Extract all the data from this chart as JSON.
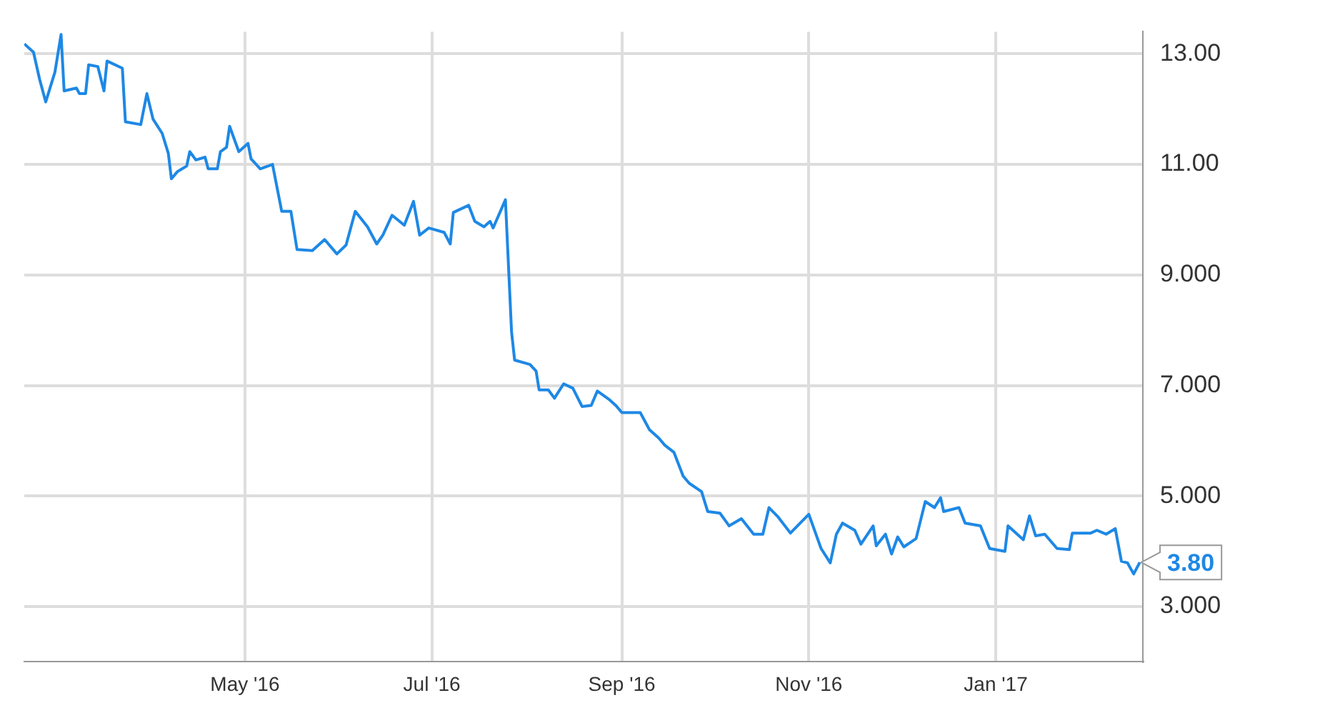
{
  "chart_data": {
    "type": "line",
    "x": [
      "2016-02-19",
      "2016-02-22",
      "2016-02-24",
      "2016-02-26",
      "2016-02-29",
      "2016-03-02",
      "2016-03-03",
      "2016-03-07",
      "2016-03-08",
      "2016-03-10",
      "2016-03-11",
      "2016-03-14",
      "2016-03-16",
      "2016-03-17",
      "2016-03-22",
      "2016-03-23",
      "2016-03-28",
      "2016-03-30",
      "2016-04-01",
      "2016-04-04",
      "2016-04-06",
      "2016-04-07",
      "2016-04-09",
      "2016-04-12",
      "2016-04-13",
      "2016-04-15",
      "2016-04-18",
      "2016-04-19",
      "2016-04-22",
      "2016-04-23",
      "2016-04-25",
      "2016-04-26",
      "2016-04-29",
      "2016-05-02",
      "2016-05-03",
      "2016-05-06",
      "2016-05-10",
      "2016-05-13",
      "2016-05-16",
      "2016-05-18",
      "2016-05-23",
      "2016-05-27",
      "2016-05-31",
      "2016-06-03",
      "2016-06-06",
      "2016-06-10",
      "2016-06-13",
      "2016-06-15",
      "2016-06-18",
      "2016-06-22",
      "2016-06-25",
      "2016-06-27",
      "2016-06-30",
      "2016-07-05",
      "2016-07-07",
      "2016-07-08",
      "2016-07-13",
      "2016-07-15",
      "2016-07-18",
      "2016-07-20",
      "2016-07-21",
      "2016-07-25",
      "2016-07-27",
      "2016-07-28",
      "2016-08-02",
      "2016-08-04",
      "2016-08-05",
      "2016-08-08",
      "2016-08-10",
      "2016-08-13",
      "2016-08-16",
      "2016-08-19",
      "2016-08-22",
      "2016-08-24",
      "2016-08-28",
      "2016-08-30",
      "2016-09-01",
      "2016-09-07",
      "2016-09-10",
      "2016-09-13",
      "2016-09-15",
      "2016-09-18",
      "2016-09-21",
      "2016-09-23",
      "2016-09-27",
      "2016-09-29",
      "2016-10-03",
      "2016-10-06",
      "2016-10-10",
      "2016-10-14",
      "2016-10-17",
      "2016-10-19",
      "2016-10-22",
      "2016-10-26",
      "2016-11-01",
      "2016-11-05",
      "2016-11-08",
      "2016-11-10",
      "2016-11-12",
      "2016-11-16",
      "2016-11-18",
      "2016-11-22",
      "2016-11-23",
      "2016-11-26",
      "2016-11-28",
      "2016-11-30",
      "2016-12-02",
      "2016-12-06",
      "2016-12-09",
      "2016-12-12",
      "2016-12-14",
      "2016-12-15",
      "2016-12-20",
      "2016-12-22",
      "2016-12-27",
      "2016-12-30",
      "2017-01-04",
      "2017-01-05",
      "2017-01-10",
      "2017-01-12",
      "2017-01-14",
      "2017-01-17",
      "2017-01-21",
      "2017-01-25",
      "2017-01-26",
      "2017-02-01",
      "2017-02-03",
      "2017-02-06",
      "2017-02-09",
      "2017-02-11",
      "2017-02-13",
      "2017-02-15",
      "2017-02-17"
    ],
    "series": [
      {
        "color": "#1e88e5",
        "values": [
          13.18,
          13.03,
          12.54,
          12.13,
          12.67,
          13.35,
          12.33,
          12.38,
          12.28,
          12.28,
          12.8,
          12.77,
          12.33,
          12.87,
          12.74,
          11.77,
          11.72,
          12.28,
          11.82,
          11.56,
          11.2,
          10.74,
          10.87,
          10.97,
          11.23,
          11.08,
          11.13,
          10.92,
          10.92,
          11.23,
          11.31,
          11.69,
          11.23,
          11.38,
          11.1,
          10.92,
          11.0,
          10.15,
          10.15,
          9.46,
          9.44,
          9.64,
          9.38,
          9.54,
          10.15,
          9.87,
          9.56,
          9.72,
          10.08,
          9.9,
          10.33,
          9.72,
          9.85,
          9.77,
          9.56,
          10.13,
          10.26,
          9.97,
          9.87,
          9.97,
          9.85,
          10.36,
          7.97,
          7.46,
          7.38,
          7.26,
          6.92,
          6.92,
          6.77,
          7.03,
          6.95,
          6.62,
          6.64,
          6.9,
          6.74,
          6.64,
          6.51,
          6.51,
          6.2,
          6.05,
          5.92,
          5.79,
          5.36,
          5.23,
          5.08,
          4.72,
          4.69,
          4.46,
          4.59,
          4.31,
          4.31,
          4.79,
          4.62,
          4.33,
          4.67,
          4.05,
          3.79,
          4.31,
          4.51,
          4.38,
          4.13,
          4.46,
          4.1,
          4.31,
          3.95,
          4.26,
          4.08,
          4.23,
          4.9,
          4.79,
          4.97,
          4.72,
          4.79,
          4.51,
          4.46,
          4.05,
          4.0,
          4.46,
          4.21,
          4.64,
          4.28,
          4.31,
          4.05,
          4.03,
          4.33,
          4.33,
          4.38,
          4.31,
          4.41,
          3.82,
          3.79,
          3.59,
          3.8
        ]
      }
    ],
    "xlim": [
      "2016-02-19",
      "2017-02-18"
    ],
    "xticks": [
      {
        "value": "2016-05-01",
        "label": "May '16"
      },
      {
        "value": "2016-07-01",
        "label": "Jul '16"
      },
      {
        "value": "2016-09-01",
        "label": "Sep '16"
      },
      {
        "value": "2016-11-01",
        "label": "Nov '16"
      },
      {
        "value": "2017-01-01",
        "label": "Jan '17"
      }
    ],
    "ylim": [
      2,
      13.4
    ],
    "yticks": [
      {
        "value": 3,
        "label": "3.000"
      },
      {
        "value": 5,
        "label": "5.000"
      },
      {
        "value": 7,
        "label": "7.000"
      },
      {
        "value": 9,
        "label": "9.000"
      },
      {
        "value": 11,
        "label": "11.00"
      },
      {
        "value": 13,
        "label": "13.00"
      }
    ],
    "annotations": [
      {
        "text": "3.80",
        "x": "2017-02-17",
        "y": 3.8
      }
    ],
    "grid": true,
    "marker": "none",
    "line_style": "solid"
  }
}
